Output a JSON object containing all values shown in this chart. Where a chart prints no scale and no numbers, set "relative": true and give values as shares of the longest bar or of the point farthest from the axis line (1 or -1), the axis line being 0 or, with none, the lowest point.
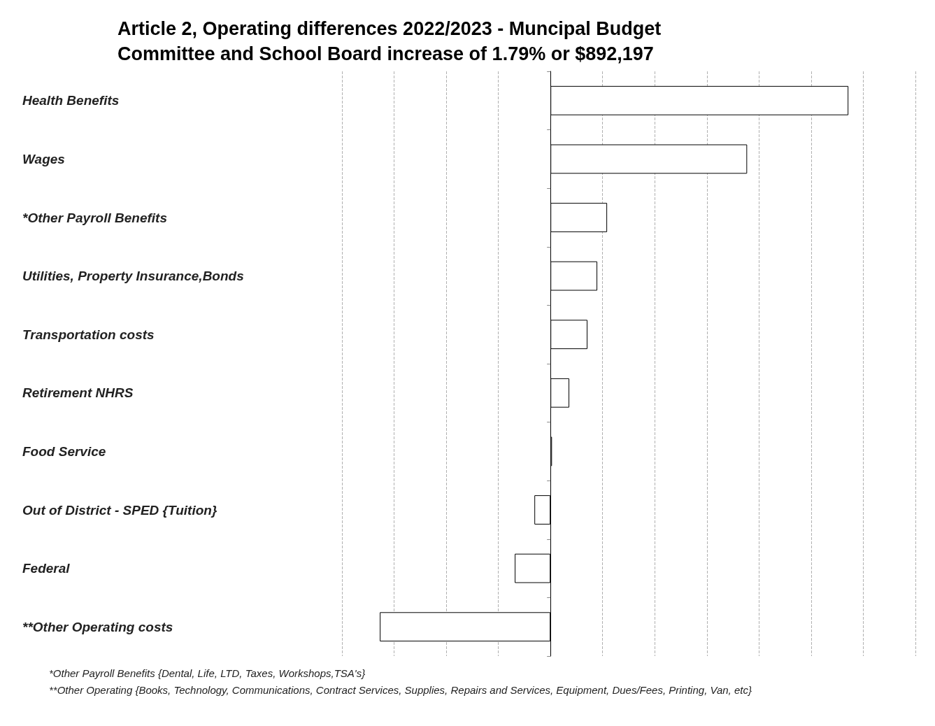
{
  "chart_data": {
    "type": "bar",
    "orientation": "horizontal",
    "relative": true,
    "title": "Article 2, Operating differences 2022/2023 - Muncipal Budget\nCommittee and School Board increase of 1.79% or $892,197",
    "categories": [
      "Health Benefits",
      "Wages",
      "*Other Payroll Benefits",
      "Utilities, Property Insurance,Bonds",
      "Transportation costs",
      "Retirement NHRS",
      "Food Service",
      "Out of District - SPED {Tuition}",
      "Federal",
      "**Other Operating costs"
    ],
    "values": [
      1,
      0.66,
      0.19,
      0.157,
      0.124,
      0.063,
      0.005,
      -0.054,
      -0.12,
      -0.573
    ],
    "color": "#ffffff",
    "grid": "x",
    "annotations": [
      "*Other Payroll Benefits {Dental, Life, LTD, Taxes, Workshops,TSA's}",
      "**Other Operating {Books, Technology, Communications, Contract Services, Supplies, Repairs and Services, Equipment, Dues/Fees, Printing, Van, etc}"
    ]
  }
}
